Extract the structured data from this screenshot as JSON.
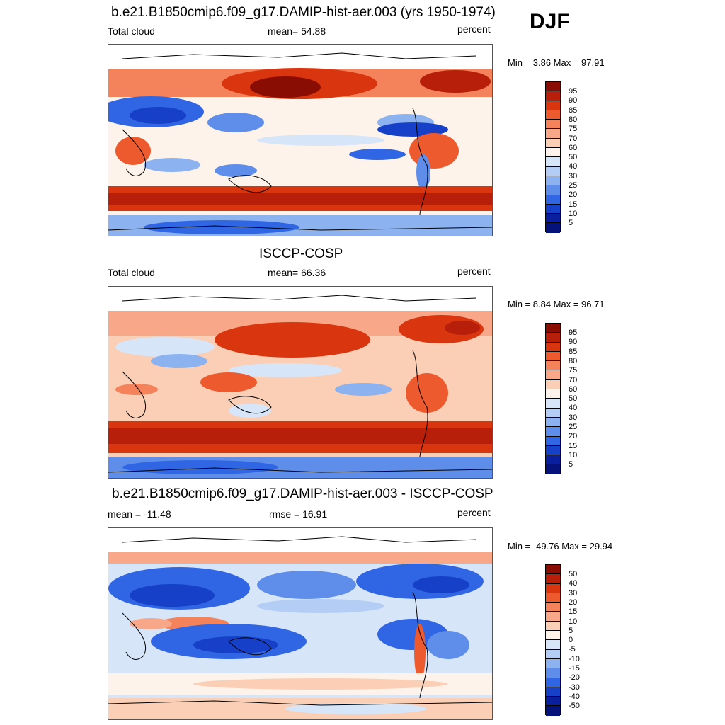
{
  "season_label": "DJF",
  "panels": [
    {
      "title": "b.e21.B1850cmip6.f09_g17.DAMIP-hist-aer.003 (yrs 1950-1974)",
      "left_label": "Total cloud",
      "center_label": "mean=  54.88",
      "units": "percent",
      "minmax": "Min =   3.86 Max =  97.91",
      "colorbar_labels": [
        "95",
        "90",
        "85",
        "80",
        "75",
        "70",
        "60",
        "50",
        "40",
        "30",
        "25",
        "20",
        "15",
        "10",
        "5"
      ]
    },
    {
      "title": "ISCCP-COSP",
      "left_label": "Total cloud",
      "center_label": "mean=  66.36",
      "units": "percent",
      "minmax": "Min =   8.84 Max =  96.71",
      "colorbar_labels": [
        "95",
        "90",
        "85",
        "80",
        "75",
        "70",
        "60",
        "50",
        "40",
        "30",
        "25",
        "20",
        "15",
        "10",
        "5"
      ]
    },
    {
      "title": "b.e21.B1850cmip6.f09_g17.DAMIP-hist-aer.003 - ISCCP-COSP",
      "left_label": "mean = -11.48",
      "center_label": "rmse =  16.91",
      "units": "percent",
      "minmax": "Min = -49.76 Max =  29.94",
      "colorbar_labels": [
        "50",
        "40",
        "30",
        "20",
        "15",
        "10",
        "5",
        "0",
        "-5",
        "-10",
        "-15",
        "-20",
        "-30",
        "-40",
        "-50"
      ]
    }
  ],
  "colorbar_colors": [
    "#8a0d04",
    "#b81f0a",
    "#d9360f",
    "#ec5a2e",
    "#f4825a",
    "#f8a888",
    "#fbcfb6",
    "#fdf3ea",
    "#d7e5f8",
    "#b3cdf4",
    "#8cb2f0",
    "#5f8eea",
    "#3066e4",
    "#1740c8",
    "#0a1f9e",
    "#04127a"
  ]
}
